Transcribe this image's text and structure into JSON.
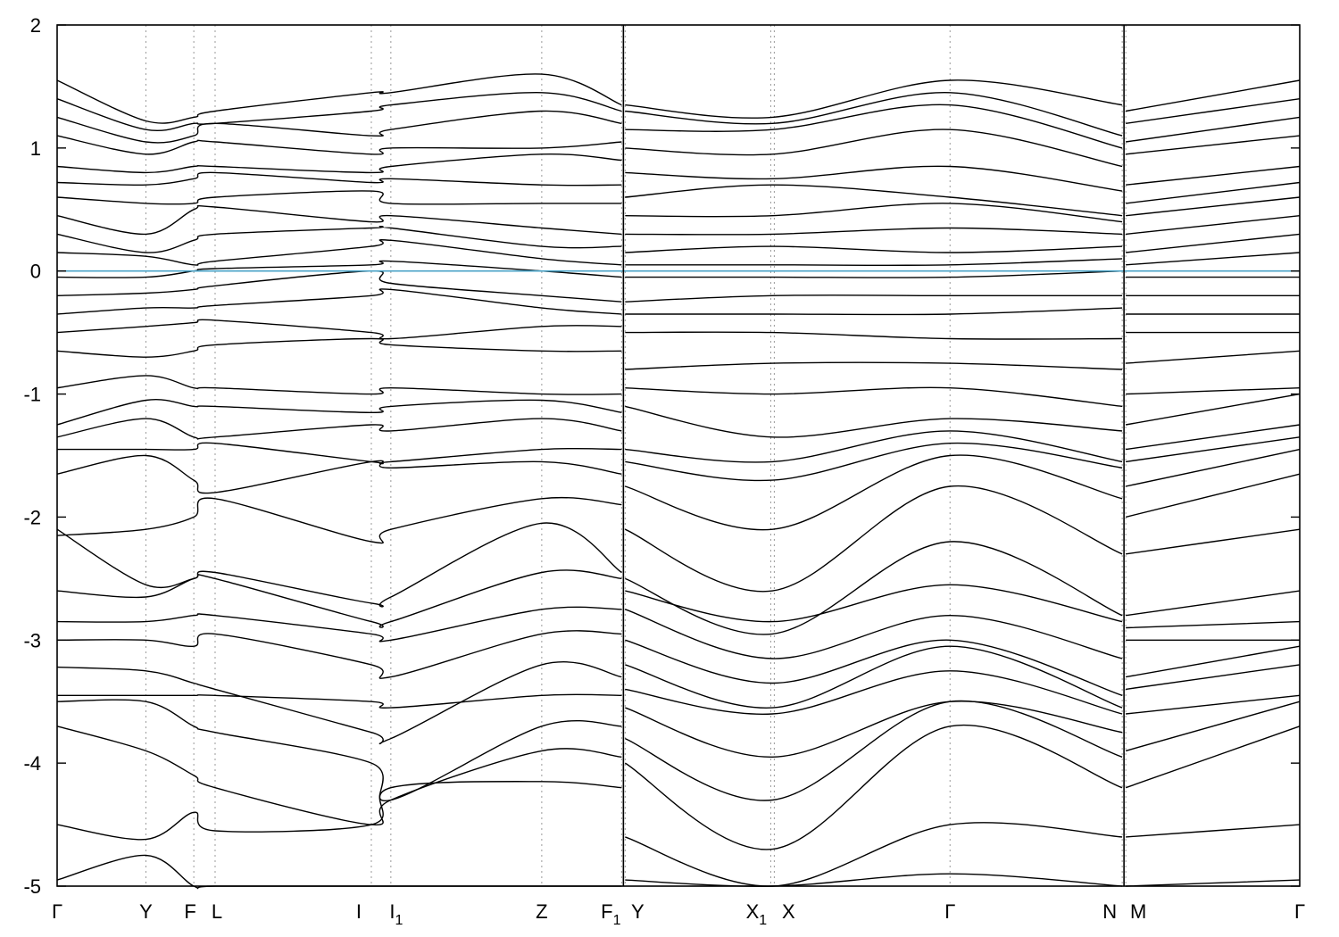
{
  "chart_data": {
    "type": "line",
    "title": "",
    "xlabel": "",
    "ylabel": "",
    "ylim": [
      -5,
      2
    ],
    "grid": "vertical dashed lines at high-symmetry points",
    "y_ticks": [
      {
        "value": 2,
        "label": "2"
      },
      {
        "value": 1,
        "label": "1"
      },
      {
        "value": 0,
        "label": "0"
      },
      {
        "value": -1,
        "label": "-1"
      },
      {
        "value": -2,
        "label": "-2"
      },
      {
        "value": -3,
        "label": "-3"
      },
      {
        "value": -4,
        "label": "-4"
      },
      {
        "value": -5,
        "label": "-5"
      }
    ],
    "xlim": [
      0,
      7.0
    ],
    "kpoints": [
      {
        "label": "Γ",
        "sub": "",
        "x": 0.0
      },
      {
        "label": "Y",
        "sub": "",
        "x": 0.5
      },
      {
        "label": "F",
        "sub": "",
        "x": 0.77
      },
      {
        "label": "L",
        "sub": "",
        "x": 0.89
      },
      {
        "label": "I",
        "sub": "",
        "x": 1.77
      },
      {
        "label": "I",
        "sub": "1",
        "x": 1.88
      },
      {
        "label": "Z",
        "sub": "",
        "x": 2.73
      },
      {
        "label": "F",
        "sub": "1",
        "x": 3.18
      },
      {
        "label": "Y",
        "sub": "",
        "x": 3.2
      },
      {
        "label": "X",
        "sub": "1",
        "x": 4.02
      },
      {
        "label": "X",
        "sub": "",
        "x": 4.04
      },
      {
        "label": "Γ",
        "sub": "",
        "x": 5.03
      },
      {
        "label": "N",
        "sub": "",
        "x": 6.0
      },
      {
        "label": "M",
        "sub": "",
        "x": 6.02
      },
      {
        "label": "Γ",
        "sub": "",
        "x": 7.0
      }
    ],
    "path_breaks": [
      3.19,
      6.01
    ],
    "fermi_level": 0.0,
    "fermi_color": "#4aa3c7",
    "line_color": "#000000",
    "segments": [
      {
        "x": [
          0.0,
          0.5,
          0.77,
          0.89,
          1.77,
          1.88,
          2.73,
          3.18
        ],
        "bands": [
          [
            -4.95,
            -4.75,
            -5.0,
            -5.0,
            -5.0,
            -5.0,
            -5.0,
            -5.0
          ],
          [
            -4.5,
            -4.62,
            -4.4,
            -4.55,
            -4.5,
            -4.2,
            -4.15,
            -4.2
          ],
          [
            -3.7,
            -3.9,
            -4.1,
            -4.2,
            -4.5,
            -4.3,
            -3.9,
            -3.95
          ],
          [
            -3.5,
            -3.5,
            -3.7,
            -3.75,
            -4.0,
            -4.3,
            -3.7,
            -3.7
          ],
          [
            -3.45,
            -3.45,
            -3.45,
            -3.45,
            -3.5,
            -3.55,
            -3.45,
            -3.45
          ],
          [
            -3.22,
            -3.25,
            -3.35,
            -3.4,
            -3.75,
            -3.8,
            -3.2,
            -3.3
          ],
          [
            -3.0,
            -3.0,
            -3.05,
            -2.95,
            -3.2,
            -3.3,
            -2.95,
            -2.95
          ],
          [
            -2.85,
            -2.85,
            -2.8,
            -2.8,
            -2.95,
            -3.0,
            -2.75,
            -2.75
          ],
          [
            -2.6,
            -2.65,
            -2.5,
            -2.5,
            -2.85,
            -2.85,
            -2.45,
            -2.5
          ],
          [
            -2.1,
            -2.55,
            -2.5,
            -2.45,
            -2.7,
            -2.65,
            -2.05,
            -2.45
          ],
          [
            -2.15,
            -2.1,
            -2.0,
            -1.85,
            -2.2,
            -2.1,
            -1.85,
            -1.9
          ],
          [
            -1.65,
            -1.5,
            -1.7,
            -1.8,
            -1.55,
            -1.6,
            -1.55,
            -1.65
          ],
          [
            -1.45,
            -1.45,
            -1.45,
            -1.4,
            -1.55,
            -1.55,
            -1.45,
            -1.45
          ],
          [
            -1.35,
            -1.2,
            -1.35,
            -1.35,
            -1.25,
            -1.3,
            -1.2,
            -1.3
          ],
          [
            -1.25,
            -1.05,
            -1.1,
            -1.1,
            -1.15,
            -1.1,
            -1.05,
            -1.15
          ],
          [
            -0.95,
            -0.85,
            -0.95,
            -0.95,
            -1.0,
            -0.95,
            -1.0,
            -1.0
          ],
          [
            -0.65,
            -0.7,
            -0.65,
            -0.6,
            -0.55,
            -0.6,
            -0.65,
            -0.65
          ],
          [
            -0.5,
            -0.45,
            -0.42,
            -0.4,
            -0.5,
            -0.55,
            -0.45,
            -0.45
          ],
          [
            -0.35,
            -0.3,
            -0.3,
            -0.28,
            -0.2,
            -0.15,
            -0.3,
            -0.35
          ],
          [
            -0.2,
            -0.18,
            -0.15,
            -0.12,
            0.0,
            -0.1,
            -0.2,
            -0.25
          ],
          [
            -0.05,
            -0.05,
            0.0,
            0.02,
            0.05,
            0.08,
            0.0,
            -0.05
          ],
          [
            0.15,
            0.12,
            0.05,
            0.08,
            0.2,
            0.25,
            0.1,
            0.05
          ],
          [
            0.3,
            0.15,
            0.25,
            0.3,
            0.35,
            0.35,
            0.2,
            0.2
          ],
          [
            0.45,
            0.3,
            0.5,
            0.52,
            0.4,
            0.45,
            0.35,
            0.3
          ],
          [
            0.6,
            0.55,
            0.55,
            0.6,
            0.65,
            0.55,
            0.55,
            0.55
          ],
          [
            0.72,
            0.7,
            0.75,
            0.8,
            0.72,
            0.75,
            0.7,
            0.7
          ],
          [
            0.85,
            0.8,
            0.85,
            0.85,
            0.8,
            0.85,
            0.95,
            0.9
          ],
          [
            1.1,
            0.95,
            1.05,
            1.05,
            0.95,
            1.0,
            1.0,
            1.05
          ],
          [
            1.25,
            1.05,
            1.1,
            1.2,
            1.1,
            1.15,
            1.3,
            1.2
          ],
          [
            1.4,
            1.15,
            1.2,
            1.2,
            1.3,
            1.35,
            1.45,
            1.3
          ],
          [
            1.55,
            1.22,
            1.25,
            1.3,
            1.45,
            1.45,
            1.6,
            1.35
          ]
        ]
      },
      {
        "x": [
          3.2,
          4.03,
          5.03,
          6.0
        ],
        "bands": [
          [
            -4.95,
            -5.0,
            -4.9,
            -5.0
          ],
          [
            -4.6,
            -5.0,
            -4.5,
            -4.6
          ],
          [
            -4.0,
            -4.7,
            -3.7,
            -4.2
          ],
          [
            -3.8,
            -4.3,
            -3.5,
            -3.95
          ],
          [
            -3.55,
            -3.95,
            -3.5,
            -3.75
          ],
          [
            -3.4,
            -3.6,
            -3.25,
            -3.6
          ],
          [
            -3.2,
            -3.55,
            -3.05,
            -3.55
          ],
          [
            -3.0,
            -3.35,
            -3.0,
            -3.45
          ],
          [
            -2.75,
            -3.15,
            -2.8,
            -3.15
          ],
          [
            -2.6,
            -2.85,
            -2.55,
            -2.85
          ],
          [
            -2.5,
            -2.95,
            -2.2,
            -2.8
          ],
          [
            -2.1,
            -2.6,
            -1.75,
            -2.3
          ],
          [
            -1.75,
            -2.1,
            -1.5,
            -1.85
          ],
          [
            -1.55,
            -1.7,
            -1.4,
            -1.6
          ],
          [
            -1.45,
            -1.55,
            -1.3,
            -1.55
          ],
          [
            -1.1,
            -1.35,
            -1.2,
            -1.3
          ],
          [
            -0.95,
            -1.0,
            -0.95,
            -1.1
          ],
          [
            -0.8,
            -0.75,
            -0.75,
            -0.8
          ],
          [
            -0.5,
            -0.5,
            -0.55,
            -0.55
          ],
          [
            -0.35,
            -0.35,
            -0.35,
            -0.3
          ],
          [
            -0.25,
            -0.2,
            -0.2,
            -0.2
          ],
          [
            -0.05,
            -0.05,
            -0.05,
            0.0
          ],
          [
            0.05,
            0.05,
            0.05,
            0.1
          ],
          [
            0.15,
            0.2,
            0.15,
            0.2
          ],
          [
            0.3,
            0.3,
            0.35,
            0.3
          ],
          [
            0.45,
            0.45,
            0.55,
            0.4
          ],
          [
            0.6,
            0.7,
            0.6,
            0.45
          ],
          [
            0.8,
            0.75,
            0.85,
            0.65
          ],
          [
            1.0,
            0.95,
            1.15,
            0.85
          ],
          [
            1.15,
            1.15,
            1.35,
            1.0
          ],
          [
            1.3,
            1.2,
            1.45,
            1.1
          ],
          [
            1.35,
            1.25,
            1.55,
            1.35
          ]
        ]
      },
      {
        "x": [
          6.02,
          7.0
        ],
        "bands": [
          [
            -5.0,
            -4.95
          ],
          [
            -4.6,
            -4.5
          ],
          [
            -4.2,
            -3.7
          ],
          [
            -3.9,
            -3.5
          ],
          [
            -3.6,
            -3.45
          ],
          [
            -3.4,
            -3.2
          ],
          [
            -3.3,
            -3.05
          ],
          [
            -3.0,
            -3.0
          ],
          [
            -2.9,
            -2.85
          ],
          [
            -2.8,
            -2.6
          ],
          [
            -2.3,
            -2.1
          ],
          [
            -2.0,
            -1.65
          ],
          [
            -1.75,
            -1.45
          ],
          [
            -1.55,
            -1.35
          ],
          [
            -1.45,
            -1.25
          ],
          [
            -1.25,
            -1.0
          ],
          [
            -1.0,
            -0.95
          ],
          [
            -0.75,
            -0.65
          ],
          [
            -0.5,
            -0.5
          ],
          [
            -0.35,
            -0.35
          ],
          [
            -0.2,
            -0.2
          ],
          [
            -0.05,
            -0.05
          ],
          [
            0.05,
            0.15
          ],
          [
            0.15,
            0.3
          ],
          [
            0.3,
            0.45
          ],
          [
            0.45,
            0.6
          ],
          [
            0.55,
            0.72
          ],
          [
            0.7,
            0.85
          ],
          [
            0.95,
            1.1
          ],
          [
            1.05,
            1.25
          ],
          [
            1.2,
            1.4
          ],
          [
            1.3,
            1.55
          ]
        ]
      }
    ]
  }
}
